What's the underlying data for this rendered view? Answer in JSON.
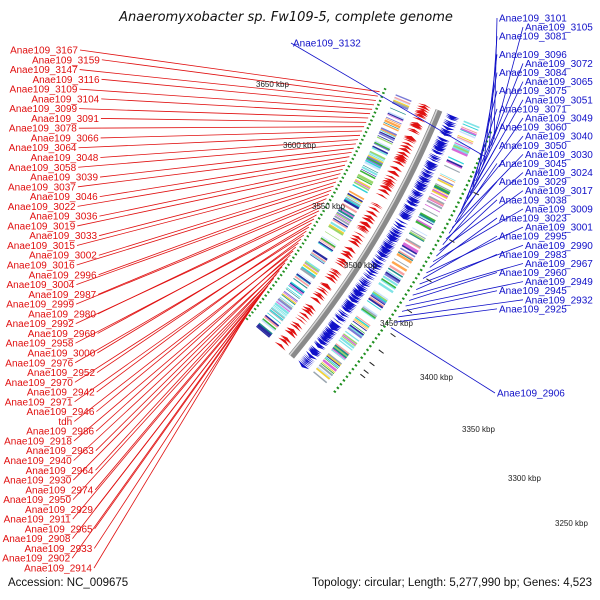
{
  "title": "Anaeromyxobacter sp. Fw109-5, complete genome",
  "footer": {
    "accession": "Accession: NC_009675",
    "topology": "Topology: circular; Length: 5,277,990 bp; Genes: 4,523"
  },
  "colors": {
    "reverse_strand": "#e01010",
    "forward_strand": "#1010c8",
    "backbone": "#8a8a8a"
  },
  "kbp_ticks": [
    "3650 kbp",
    "3600 kbp",
    "3550 kbp",
    "3500 kbp",
    "3450 kbp",
    "3400 kbp",
    "3350 kbp",
    "3300 kbp",
    "3250 kbp"
  ],
  "left_genes": [
    "Anae109_3167",
    "Anae109_3159",
    "Anae109_3147",
    "Anae109_3116",
    "Anae109_3109",
    "Anae109_3104",
    "Anae109_3099",
    "Anae109_3091",
    "Anae109_3078",
    "Anae109_3066",
    "Anae109_3064",
    "Anae109_3048",
    "Anae109_3058",
    "Anae109_3039",
    "Anae109_3037",
    "Anae109_3046",
    "Anae109_3022",
    "Anae109_3036",
    "Anae109_3019",
    "Anae109_3033",
    "Anae109_3015",
    "Anae109_3002",
    "Anae109_3016",
    "Anae109_2996",
    "Anae109_3004",
    "Anae109_2987",
    "Anae109_2999",
    "Anae109_2980",
    "Anae109_2992",
    "Anae109_2969",
    "Anae109_2958",
    "Anae109_3000",
    "Anae109_2976",
    "Anae109_2952",
    "Anae109_2970",
    "Anae109_2942",
    "Anae109_2971",
    "Anae109_2946",
    "tdh",
    "Anae109_2986",
    "Anae109_2918",
    "Anae109_2963",
    "Anae109_2940",
    "Anae109_2964",
    "Anae109_2930",
    "Anae109_2974",
    "Anae109_2950",
    "Anae109_2929",
    "Anae109_2911",
    "Anae109_2965",
    "Anae109_2908",
    "Anae109_2933",
    "Anae109_2902",
    "Anae109_2914"
  ],
  "right_genes": [
    "Anae109_3101",
    "Anae109_3105",
    "Anae109_3081",
    "Anae109_3132",
    "Anae109_3096",
    "Anae109_3072",
    "Anae109_3084",
    "Anae109_3065",
    "Anae109_3075",
    "Anae109_3051",
    "Anae109_3071",
    "Anae109_3049",
    "Anae109_3060",
    "Anae109_3040",
    "Anae109_3050",
    "Anae109_3030",
    "Anae109_3045",
    "Anae109_3024",
    "Anae109_3029",
    "Anae109_3017",
    "Anae109_3038",
    "Anae109_3009",
    "Anae109_3023",
    "Anae109_3001",
    "Anae109_2995",
    "Anae109_2990",
    "Anae109_2983",
    "Anae109_2967",
    "Anae109_2960",
    "Anae109_2949",
    "Anae109_2945",
    "Anae109_2932",
    "Anae109_2925",
    "Anae109_2906"
  ]
}
